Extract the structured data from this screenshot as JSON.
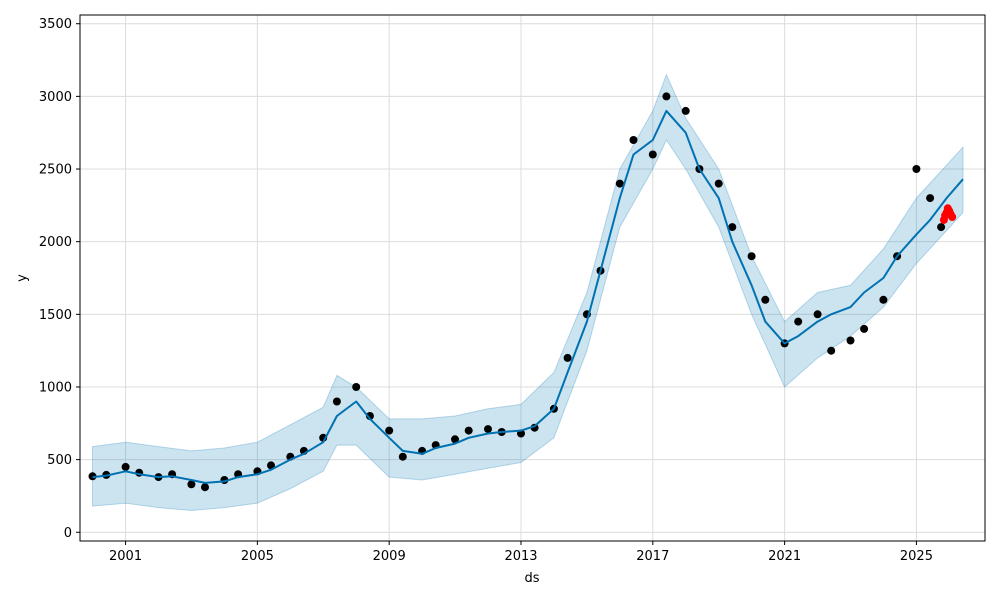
{
  "chart_data": {
    "type": "line",
    "title": "",
    "xlabel": "ds",
    "ylabel": "y",
    "xlim": [
      "1999-08-15",
      "2027-01-31"
    ],
    "ylim": [
      -60,
      3560
    ],
    "x_ticks": [
      "2001",
      "2005",
      "2009",
      "2013",
      "2017",
      "2021",
      "2025"
    ],
    "y_ticks": [
      0,
      500,
      1000,
      1500,
      2000,
      2500,
      3000,
      3500
    ],
    "grid": true,
    "colors": {
      "observed": "#000000",
      "forecast": "#0072B2",
      "uncertainty": "#0072B2",
      "holdout": "#ff0000"
    },
    "series": [
      {
        "role": "observed",
        "marker": "point",
        "x": [
          "2000-01-01",
          "2000-06-01",
          "2001-01-01",
          "2001-06-01",
          "2002-01-01",
          "2002-06-01",
          "2003-01-01",
          "2003-06-01",
          "2004-01-01",
          "2004-06-01",
          "2005-01-01",
          "2005-06-01",
          "2006-01-01",
          "2006-06-01",
          "2007-01-01",
          "2007-06-01",
          "2008-01-01",
          "2008-06-01",
          "2009-01-01",
          "2009-06-01",
          "2010-01-01",
          "2010-06-01",
          "2011-01-01",
          "2011-06-01",
          "2012-01-01",
          "2012-06-01",
          "2013-01-01",
          "2013-06-01",
          "2014-01-01",
          "2014-06-01",
          "2015-01-01",
          "2015-06-01",
          "2016-01-01",
          "2016-06-01",
          "2017-01-01",
          "2017-06-01",
          "2018-01-01",
          "2018-06-01",
          "2019-01-01",
          "2019-06-01",
          "2020-01-01",
          "2020-06-01",
          "2021-01-01",
          "2021-06-01",
          "2022-01-01",
          "2022-06-01",
          "2023-01-01",
          "2023-06-01",
          "2024-01-01",
          "2024-06-01",
          "2025-01-01",
          "2025-06-01",
          "2025-10-01"
        ],
        "y": [
          385,
          395,
          450,
          410,
          380,
          400,
          330,
          310,
          360,
          400,
          420,
          460,
          520,
          560,
          650,
          900,
          1000,
          800,
          700,
          520,
          560,
          600,
          640,
          700,
          710,
          690,
          680,
          720,
          850,
          1200,
          1500,
          1800,
          2400,
          2700,
          2600,
          3000,
          2900,
          2500,
          2400,
          2100,
          1900,
          1600,
          1300,
          1450,
          1500,
          1250,
          1320,
          1400,
          1600,
          1900,
          2500,
          2300,
          2100
        ]
      },
      {
        "role": "forecast",
        "marker": "line",
        "x": [
          "2000-01-01",
          "2000-06-01",
          "2001-01-01",
          "2001-06-01",
          "2002-01-01",
          "2002-06-01",
          "2003-01-01",
          "2003-06-01",
          "2004-01-01",
          "2004-06-01",
          "2005-01-01",
          "2005-06-01",
          "2006-01-01",
          "2006-06-01",
          "2007-01-01",
          "2007-06-01",
          "2008-01-01",
          "2008-06-01",
          "2009-01-01",
          "2009-06-01",
          "2010-01-01",
          "2010-06-01",
          "2011-01-01",
          "2011-06-01",
          "2012-01-01",
          "2012-06-01",
          "2013-01-01",
          "2013-06-01",
          "2014-01-01",
          "2014-06-01",
          "2015-01-01",
          "2015-06-01",
          "2016-01-01",
          "2016-06-01",
          "2017-01-01",
          "2017-06-01",
          "2018-01-01",
          "2018-06-01",
          "2019-01-01",
          "2019-06-01",
          "2020-01-01",
          "2020-06-01",
          "2021-01-01",
          "2021-06-01",
          "2022-01-01",
          "2022-06-01",
          "2023-01-01",
          "2023-06-01",
          "2024-01-01",
          "2024-06-01",
          "2025-01-01",
          "2025-06-01",
          "2025-12-01",
          "2026-06-01"
        ],
        "y": [
          380,
          390,
          420,
          400,
          380,
          385,
          360,
          340,
          350,
          380,
          400,
          430,
          500,
          540,
          620,
          800,
          900,
          780,
          650,
          560,
          540,
          580,
          610,
          650,
          680,
          690,
          700,
          730,
          850,
          1100,
          1450,
          1800,
          2300,
          2600,
          2700,
          2900,
          2750,
          2500,
          2300,
          2000,
          1700,
          1450,
          1300,
          1350,
          1450,
          1500,
          1550,
          1650,
          1750,
          1900,
          2050,
          2150,
          2300,
          2430
        ]
      }
    ],
    "uncertainty_interval": {
      "x": [
        "2000-01-01",
        "2001-01-01",
        "2002-01-01",
        "2003-01-01",
        "2004-01-01",
        "2005-01-01",
        "2006-01-01",
        "2007-01-01",
        "2007-06-01",
        "2008-01-01",
        "2009-01-01",
        "2010-01-01",
        "2011-01-01",
        "2012-01-01",
        "2013-01-01",
        "2014-01-01",
        "2015-01-01",
        "2016-01-01",
        "2017-01-01",
        "2017-06-01",
        "2018-01-01",
        "2019-01-01",
        "2020-01-01",
        "2021-01-01",
        "2022-01-01",
        "2023-01-01",
        "2024-01-01",
        "2025-01-01",
        "2026-06-01"
      ],
      "lower": [
        180,
        200,
        170,
        150,
        170,
        200,
        300,
        420,
        600,
        600,
        380,
        360,
        400,
        440,
        480,
        650,
        1250,
        2100,
        2500,
        2700,
        2500,
        2100,
        1500,
        1000,
        1200,
        1350,
        1550,
        1850,
        2200
      ],
      "upper": [
        590,
        620,
        590,
        560,
        580,
        620,
        740,
        860,
        1080,
        1000,
        780,
        780,
        800,
        850,
        880,
        1100,
        1650,
        2500,
        2900,
        3150,
        2850,
        2500,
        1900,
        1450,
        1650,
        1700,
        1950,
        2300,
        2650
      ]
    },
    "holdout": {
      "x": [
        "2025-11-01",
        "2025-11-15",
        "2025-12-01",
        "2025-12-15",
        "2026-01-01",
        "2026-01-15",
        "2026-02-01"
      ],
      "y": [
        2150,
        2180,
        2200,
        2230,
        2210,
        2190,
        2170
      ]
    }
  }
}
